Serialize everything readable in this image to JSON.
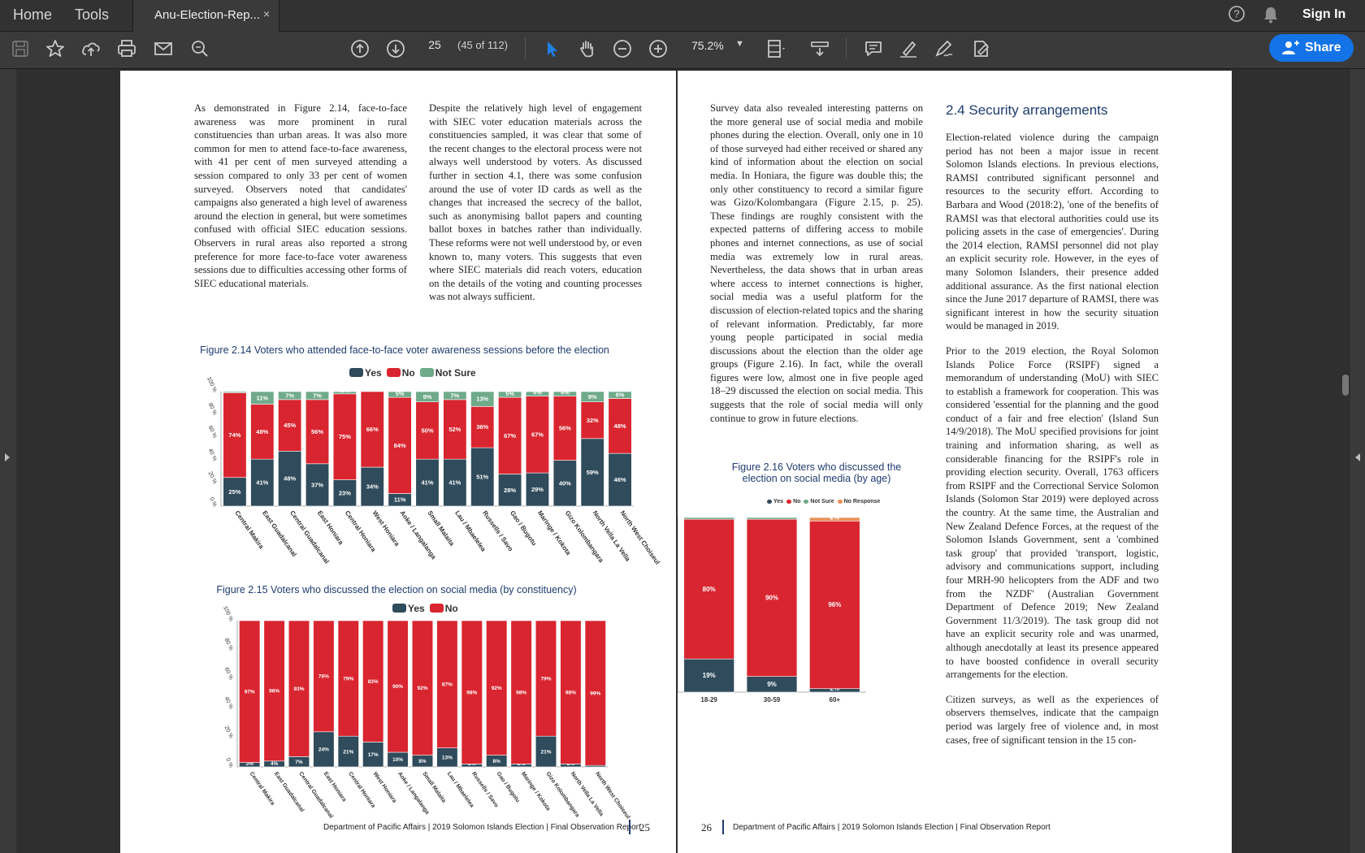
{
  "menubar": {
    "home": "Home",
    "tools": "Tools",
    "doc_tab": "Anu-Election-Rep...",
    "close": "×",
    "sign_in": "Sign In"
  },
  "toolbar": {
    "page_current": "25",
    "page_of": "(45 of 112)",
    "zoom": "75.2%",
    "share": "Share"
  },
  "left_page": {
    "col1": "As demonstrated in Figure 2.14, face-to-face awareness was more prominent in rural constituencies than urban areas. It was also more common for men to attend face-to-face awareness, with 41 per cent of men surveyed attending a session compared to only 33 per cent of women surveyed. Observers noted that candidates' campaigns also generated a high level of awareness around the election in general, but were sometimes confused with official SIEC education sessions. Observers in rural areas also reported a strong preference for more face-to-face voter awareness sessions due to difficulties accessing other forms of SIEC educational materials.",
    "col2": "Despite the relatively high level of engagement with SIEC voter education materials across the constituencies sampled, it was clear that some of the recent changes to the electoral process were not always well understood by voters. As discussed further in section 4.1, there was some confusion around the use of voter ID cards as well as the changes that increased the secrecy of the ballot, such as anonymising ballot papers and counting ballot boxes in batches rather than individually. These reforms were not well understood by, or even known to, many voters. This suggests that even where SIEC materials did reach voters, education on the details of the voting and counting processes was not always sufficient.",
    "fig214_title": "Figure 2.14 Voters who attended face-to-face voter awareness sessions before the election",
    "fig215_title": "Figure 2.15 Voters who discussed the election on social media (by constituency)",
    "footer": "Department of Pacific Affairs | 2019 Solomon Islands Election | Final Observation Report",
    "page_number": "25"
  },
  "right_page": {
    "col1": "Survey data also revealed interesting patterns on the more general use of social media and mobile phones during the election. Overall, only one in 10 of those surveyed had either received or shared any kind of information about the election on social media. In Honiara, the figure was double this; the only other constituency to record a similar figure was Gizo/Kolombangara (Figure 2.15, p. 25). These findings are roughly consistent with the expected patterns of differing access to mobile phones and internet connections, as use of social media was extremely low in rural areas. Nevertheless, the data shows that in urban areas where access to internet connections is higher, social media was a useful platform for the discussion of election-related topics and the sharing of relevant information. Predictably, far more young people participated in social media discussions about the election than the older age groups (Figure 2.16). In fact, while the overall figures were low, almost one in five people aged 18–29 discussed the election on social media. This suggests that the role of social media will only continue to grow in future elections.",
    "fig216_title_1": "Figure 2.16 Voters who discussed the",
    "fig216_title_2": "election on social media (by age)",
    "section_heading": "2.4 Security arrangements",
    "col2_p1": "Election-related violence during the campaign period has not been a major issue in recent Solomon Islands elections. In previous elections, RAMSI contributed significant personnel and resources to the security effort. According to Barbara and Wood (2018:2), 'one of the benefits of RAMSI was that electoral authorities could use its policing assets in the case of emergencies'. During the 2014 election, RAMSI personnel did not play an explicit security role. However, in the eyes of many Solomon Islanders, their presence added additional assurance. As the first national election since the June 2017 departure of RAMSI, there was significant interest in how the security situation would be managed in 2019.",
    "col2_p2": "Prior to the 2019 election, the Royal Solomon Islands Police Force (RSIPF) signed a memorandum of understanding (MoU) with SIEC to establish a framework for cooperation. This was considered 'essential for the planning and the good conduct of a fair and free election' (Island Sun 14/9/2018). The MoU specified provisions for joint training and information sharing, as well as considerable financing for the RSIPF's role in providing election security. Overall, 1763 officers from RSIPF and the Correctional Service Solomon Islands (Solomon Star 2019) were deployed across the country. At the same time, the Australian and New Zealand Defence Forces, at the request of the Solomon Islands Government, sent a 'combined task group' that provided 'transport, logistic, advisory and communications support, including four MRH-90 helicopters from the ADF and two from the NZDF' (Australian Government Department of Defence 2019; New Zealand Government 11/3/2019). The task group did not have an explicit security role and was unarmed, although anecdotally at least its presence appeared to have boosted confidence in overall security arrangements for the election.",
    "col2_p3": "Citizen surveys, as well as the experiences of observers themselves, indicate that the campaign period was largely free of violence and, in most cases, free of significant tension in the 15 con-",
    "footer": "Department of Pacific Affairs | 2019 Solomon Islands Election | Final Observation Report",
    "page_number": "26"
  },
  "colors": {
    "yes": "#2f4b5c",
    "no": "#d9252f",
    "not_sure": "#6faa8a",
    "no_response": "#e8925a",
    "heading": "#1f3c6e",
    "share": "#1473e6"
  },
  "chart_data": [
    {
      "type": "bar",
      "stacked": true,
      "ylim": [
        0,
        100
      ],
      "yticks": [
        "0 %",
        "20 %",
        "40 %",
        "60 %",
        "80 %",
        "100 %"
      ],
      "categories": [
        "Central Makira",
        "East Guadalcanal",
        "Central Guadalcanal",
        "East Honiara",
        "Central Honiara",
        "West Honiara",
        "Aoke / Langalanga",
        "Small Malaita",
        "Lau / Mbaelelea",
        "Russells / Savo",
        "Gao / Bugotu",
        "Maringe / Kokota",
        "Gizo Kolombangara",
        "North Vella La Vella",
        "North West Choiseul"
      ],
      "series": [
        {
          "name": "Yes",
          "values": [
            25,
            41,
            48,
            37,
            23,
            34,
            11,
            41,
            41,
            51,
            28,
            29,
            40,
            59,
            46
          ],
          "labels": [
            "25%",
            "41%",
            "48%",
            "37%",
            "23%",
            "34%",
            "11%",
            "41%",
            "41%",
            "51%",
            "28%",
            "29%",
            "40%",
            "59%",
            "46%"
          ]
        },
        {
          "name": "No",
          "values": [
            74,
            48,
            45,
            56,
            75,
            66,
            84,
            50,
            52,
            36,
            67,
            67,
            56,
            32,
            48
          ],
          "labels": [
            "74%",
            "48%",
            "45%",
            "56%",
            "75%",
            "66%",
            "84%",
            "50%",
            "52%",
            "36%",
            "67%",
            "67%",
            "56%",
            "32%",
            "48%"
          ]
        },
        {
          "name": "Not Sure",
          "values": [
            1,
            11,
            7,
            7,
            2,
            0,
            5,
            9,
            7,
            13,
            5,
            4,
            4,
            9,
            6
          ],
          "labels": [
            "1%",
            "11%",
            "7%",
            "7%",
            "2%",
            "",
            "5%",
            "9%",
            "7%",
            "13%",
            "5%",
            "4%",
            "4%",
            "9%",
            "6%"
          ]
        }
      ]
    },
    {
      "type": "bar",
      "stacked": true,
      "ylim": [
        0,
        100
      ],
      "yticks": [
        "0 %",
        "20 %",
        "40 %",
        "60 %",
        "80 %",
        "100 %"
      ],
      "categories": [
        "Central Makira",
        "East Guadalcanal",
        "Central Guadalcanal",
        "East Honiara",
        "Central Honiara",
        "West Honiara",
        "Aoke / Langalanga",
        "Small Malaita",
        "Lau / Mbaelelea",
        "Russells / Savo",
        "Gao / Bugotu",
        "Maringe / Kokota",
        "Gizo Kolombangara",
        "North Vella La Vella",
        "North West Choiseul"
      ],
      "series": [
        {
          "name": "Yes",
          "values": [
            3,
            4,
            7,
            24,
            21,
            17,
            10,
            8,
            13,
            2,
            8,
            2,
            21,
            2,
            1
          ],
          "labels": [
            "3%",
            "4%",
            "7%",
            "24%",
            "21%",
            "17%",
            "10%",
            "8%",
            "13%",
            "2%",
            "8%",
            "2%",
            "21%",
            "2%",
            "1%"
          ]
        },
        {
          "name": "No",
          "values": [
            97,
            96,
            93,
            76,
            79,
            83,
            90,
            92,
            87,
            98,
            92,
            98,
            79,
            98,
            99
          ],
          "labels": [
            "97%",
            "96%",
            "93%",
            "76%",
            "79%",
            "83%",
            "90%",
            "92%",
            "87%",
            "98%",
            "92%",
            "98%",
            "79%",
            "98%",
            "99%"
          ]
        }
      ]
    },
    {
      "type": "bar",
      "stacked": true,
      "ylim": [
        0,
        100
      ],
      "yticks": [
        "0 %",
        "20 %",
        "40 %",
        "60 %",
        "80 %",
        "100 %"
      ],
      "categories": [
        "18-29",
        "30-59",
        "60+"
      ],
      "series": [
        {
          "name": "Yes",
          "values": [
            19,
            9,
            2
          ],
          "labels": [
            "19%",
            "9%",
            "2%"
          ]
        },
        {
          "name": "No",
          "values": [
            80,
            90,
            96
          ],
          "labels": [
            "80%",
            "90%",
            "96%"
          ]
        },
        {
          "name": "Not Sure",
          "values": [
            1,
            1,
            0
          ],
          "labels": [
            "1%",
            "1%",
            ""
          ]
        },
        {
          "name": "No Response",
          "values": [
            0,
            0,
            2
          ],
          "labels": [
            "",
            "",
            "2%"
          ]
        }
      ]
    }
  ]
}
